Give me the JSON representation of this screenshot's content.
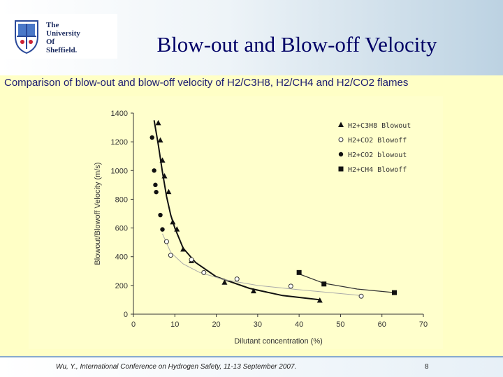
{
  "header": {
    "logo_text": "The\nUniversity\nOf\nSheffield.",
    "title": "Blow-out and Blow-off Velocity",
    "logo_icon": "shield-crest-icon"
  },
  "subtitle": "Comparison of blow-out and blow-off velocity of H2/C3H8, H2/CH4 and H2/CO2 flames",
  "footer": {
    "citation": "Wu, Y., International Conference on Hydrogen Safety, 11-13 September 2007.",
    "page": "8"
  },
  "chart_data": {
    "type": "scatter",
    "xlabel": "Dilutant concentration (%)",
    "ylabel": "Blowout/Blowoff Velocity (m/s)",
    "xlim": [
      0,
      70
    ],
    "ylim": [
      0,
      1400
    ],
    "xticks": [
      "0",
      "10",
      "20",
      "30",
      "40",
      "50",
      "60",
      "70"
    ],
    "yticks": [
      "0",
      "200",
      "400",
      "600",
      "800",
      "1000",
      "1200",
      "1400"
    ],
    "grid": false,
    "legend_position": "top-right",
    "series": [
      {
        "name": "H2+C3H8 Blowout",
        "marker": "triangle",
        "points": [
          [
            6,
            1330
          ],
          [
            6.5,
            1210
          ],
          [
            7,
            1070
          ],
          [
            7.5,
            960
          ],
          [
            8.5,
            850
          ],
          [
            9.5,
            640
          ],
          [
            10.5,
            590
          ],
          [
            12,
            450
          ],
          [
            14,
            370
          ],
          [
            22,
            220
          ],
          [
            29,
            160
          ],
          [
            45,
            95
          ]
        ],
        "fit": [
          [
            5,
            1350
          ],
          [
            6,
            1180
          ],
          [
            7,
            990
          ],
          [
            8,
            820
          ],
          [
            9,
            690
          ],
          [
            10,
            600
          ],
          [
            12,
            460
          ],
          [
            15,
            360
          ],
          [
            20,
            260
          ],
          [
            28,
            180
          ],
          [
            36,
            130
          ],
          [
            45,
            100
          ]
        ]
      },
      {
        "name": "H2+CO2 Blowoff",
        "marker": "open-circle",
        "points": [
          [
            8,
            505
          ],
          [
            9,
            410
          ],
          [
            14,
            380
          ],
          [
            17,
            290
          ],
          [
            25,
            245
          ],
          [
            38,
            195
          ],
          [
            55,
            125
          ]
        ],
        "fit": [
          [
            7,
            560
          ],
          [
            9,
            430
          ],
          [
            12,
            350
          ],
          [
            16,
            290
          ],
          [
            22,
            240
          ],
          [
            30,
            200
          ],
          [
            40,
            170
          ],
          [
            55,
            130
          ]
        ]
      },
      {
        "name": "H2+CO2 blowout",
        "marker": "filled-circle",
        "points": [
          [
            4.5,
            1230
          ],
          [
            5,
            1000
          ],
          [
            5.3,
            900
          ],
          [
            5.5,
            850
          ],
          [
            6.5,
            690
          ],
          [
            7,
            590
          ]
        ],
        "fit": []
      },
      {
        "name": "H2+CH4 Blowoff",
        "marker": "square",
        "points": [
          [
            40,
            290
          ],
          [
            46,
            210
          ],
          [
            63,
            150
          ]
        ],
        "fit": [
          [
            40,
            280
          ],
          [
            46,
            215
          ],
          [
            54,
            175
          ],
          [
            63,
            150
          ]
        ]
      }
    ]
  }
}
